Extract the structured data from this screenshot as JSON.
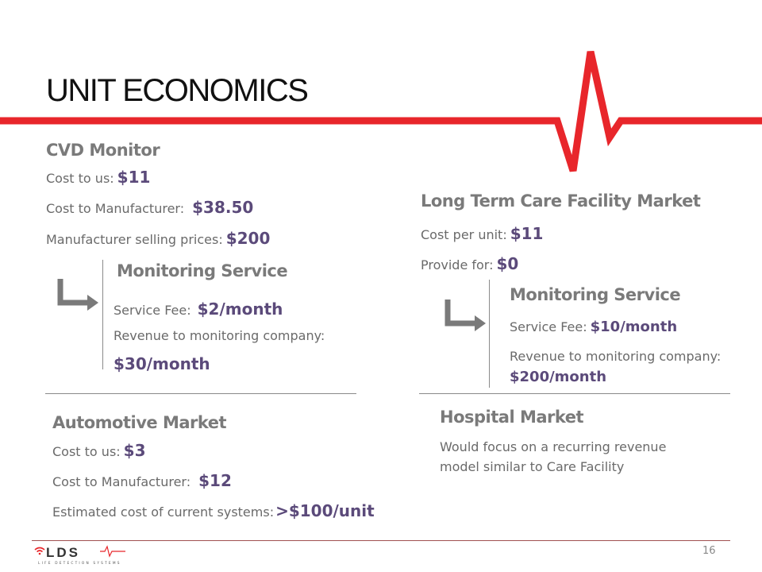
{
  "title": "UNIT ECONOMICS",
  "cvd": {
    "heading": "CVD Monitor",
    "rows": [
      {
        "label": "Cost to us:",
        "value": "$11"
      },
      {
        "label": "Cost to Manufacturer:",
        "value": "$38.50"
      },
      {
        "label": "Manufacturer selling prices:",
        "value": "$200"
      }
    ],
    "service": {
      "heading": "Monitoring Service",
      "fee_label": "Service Fee:",
      "fee_value": "$2/month",
      "revenue_label": "Revenue to monitoring company:",
      "revenue_value": "$30/month"
    }
  },
  "ltc": {
    "heading": "Long Term Care Facility Market",
    "rows": [
      {
        "label": "Cost per unit:",
        "value": "$11"
      },
      {
        "label": "Provide for:",
        "value": "$0"
      }
    ],
    "service": {
      "heading": "Monitoring Service",
      "fee_label": "Service Fee:",
      "fee_value": "$10/month",
      "revenue_label": "Revenue to monitoring company:",
      "revenue_value": "$200/month"
    }
  },
  "auto": {
    "heading": "Automotive Market",
    "rows": [
      {
        "label": "Cost to us:",
        "value": "$3"
      },
      {
        "label": "Cost to Manufacturer:",
        "value": "$12"
      },
      {
        "label": "Estimated cost of current systems:",
        "value": ">$100/unit"
      }
    ]
  },
  "hospital": {
    "heading": "Hospital Market",
    "line1": "Would focus on a recurring revenue",
    "line2": "model similar to Care Facility"
  },
  "footer": {
    "logo_text": "LDS",
    "logo_tagline": "LIFE DETECTION SYSTEMS",
    "page_number": "16"
  },
  "colors": {
    "accent": "#e8262b",
    "value": "#5b4a7a"
  }
}
